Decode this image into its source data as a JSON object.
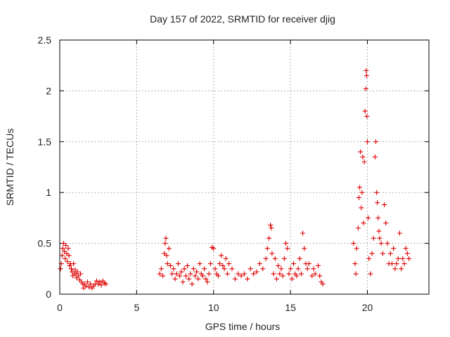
{
  "chart_data": {
    "type": "scatter",
    "title": "Day 157 of 2022, SRMTID for receiver djig",
    "xlabel": "GPS time / hours",
    "ylabel": "SRMTID / TECUs",
    "xlim": [
      0,
      24
    ],
    "ylim": [
      0,
      2.5
    ],
    "xticks": [
      0,
      5,
      10,
      15,
      20
    ],
    "yticks": [
      0,
      0.5,
      1,
      1.5,
      2,
      2.5
    ],
    "xtick_labels": [
      "0",
      "5",
      "10",
      "15",
      "20"
    ],
    "ytick_labels": [
      "0",
      "0.5",
      "1",
      "1.5",
      "2",
      "2.5"
    ],
    "grid": true,
    "marker": "plus",
    "color": "#e00000",
    "series": [
      {
        "name": "SRMTID",
        "points": [
          [
            0.05,
            0.25
          ],
          [
            0.1,
            0.3
          ],
          [
            0.15,
            0.38
          ],
          [
            0.2,
            0.45
          ],
          [
            0.25,
            0.5
          ],
          [
            0.3,
            0.42
          ],
          [
            0.35,
            0.35
          ],
          [
            0.4,
            0.48
          ],
          [
            0.45,
            0.4
          ],
          [
            0.5,
            0.32
          ],
          [
            0.55,
            0.45
          ],
          [
            0.6,
            0.38
          ],
          [
            0.65,
            0.28
          ],
          [
            0.7,
            0.3
          ],
          [
            0.75,
            0.25
          ],
          [
            0.8,
            0.22
          ],
          [
            0.85,
            0.18
          ],
          [
            0.9,
            0.3
          ],
          [
            0.95,
            0.2
          ],
          [
            1.0,
            0.24
          ],
          [
            1.05,
            0.2
          ],
          [
            1.1,
            0.16
          ],
          [
            1.15,
            0.22
          ],
          [
            1.2,
            0.18
          ],
          [
            1.3,
            0.14
          ],
          [
            1.35,
            0.2
          ],
          [
            1.4,
            0.12
          ],
          [
            1.5,
            0.1
          ],
          [
            1.55,
            0.06
          ],
          [
            1.6,
            0.1
          ],
          [
            1.7,
            0.08
          ],
          [
            1.8,
            0.12
          ],
          [
            1.9,
            0.07
          ],
          [
            2.0,
            0.1
          ],
          [
            2.1,
            0.06
          ],
          [
            2.2,
            0.08
          ],
          [
            2.3,
            0.1
          ],
          [
            2.4,
            0.13
          ],
          [
            2.5,
            0.1
          ],
          [
            2.6,
            0.12
          ],
          [
            2.7,
            0.09
          ],
          [
            2.8,
            0.13
          ],
          [
            2.9,
            0.11
          ],
          [
            3.0,
            0.1
          ],
          [
            6.5,
            0.2
          ],
          [
            6.6,
            0.25
          ],
          [
            6.7,
            0.18
          ],
          [
            6.8,
            0.4
          ],
          [
            6.85,
            0.5
          ],
          [
            6.9,
            0.55
          ],
          [
            6.95,
            0.38
          ],
          [
            7.0,
            0.3
          ],
          [
            7.1,
            0.45
          ],
          [
            7.2,
            0.28
          ],
          [
            7.3,
            0.2
          ],
          [
            7.4,
            0.25
          ],
          [
            7.5,
            0.15
          ],
          [
            7.6,
            0.2
          ],
          [
            7.7,
            0.3
          ],
          [
            7.8,
            0.18
          ],
          [
            7.9,
            0.22
          ],
          [
            8.0,
            0.12
          ],
          [
            8.1,
            0.25
          ],
          [
            8.2,
            0.18
          ],
          [
            8.3,
            0.28
          ],
          [
            8.4,
            0.15
          ],
          [
            8.5,
            0.2
          ],
          [
            8.6,
            0.1
          ],
          [
            8.7,
            0.25
          ],
          [
            8.8,
            0.18
          ],
          [
            8.9,
            0.22
          ],
          [
            9.0,
            0.15
          ],
          [
            9.1,
            0.3
          ],
          [
            9.2,
            0.2
          ],
          [
            9.3,
            0.18
          ],
          [
            9.4,
            0.25
          ],
          [
            9.5,
            0.15
          ],
          [
            9.6,
            0.12
          ],
          [
            9.7,
            0.2
          ],
          [
            9.8,
            0.3
          ],
          [
            9.9,
            0.46
          ],
          [
            10.0,
            0.45
          ],
          [
            10.1,
            0.25
          ],
          [
            10.2,
            0.2
          ],
          [
            10.3,
            0.18
          ],
          [
            10.4,
            0.3
          ],
          [
            10.5,
            0.38
          ],
          [
            10.6,
            0.28
          ],
          [
            10.7,
            0.25
          ],
          [
            10.8,
            0.35
          ],
          [
            10.9,
            0.2
          ],
          [
            11.0,
            0.3
          ],
          [
            11.2,
            0.25
          ],
          [
            11.4,
            0.15
          ],
          [
            11.6,
            0.2
          ],
          [
            11.8,
            0.18
          ],
          [
            12.0,
            0.2
          ],
          [
            12.2,
            0.15
          ],
          [
            12.4,
            0.25
          ],
          [
            12.6,
            0.2
          ],
          [
            12.8,
            0.22
          ],
          [
            13.0,
            0.3
          ],
          [
            13.2,
            0.25
          ],
          [
            13.4,
            0.35
          ],
          [
            13.5,
            0.45
          ],
          [
            13.6,
            0.55
          ],
          [
            13.7,
            0.68
          ],
          [
            13.75,
            0.65
          ],
          [
            13.8,
            0.4
          ],
          [
            13.9,
            0.2
          ],
          [
            14.0,
            0.35
          ],
          [
            14.1,
            0.15
          ],
          [
            14.2,
            0.28
          ],
          [
            14.3,
            0.2
          ],
          [
            14.4,
            0.25
          ],
          [
            14.5,
            0.18
          ],
          [
            14.6,
            0.35
          ],
          [
            14.7,
            0.5
          ],
          [
            14.8,
            0.45
          ],
          [
            14.9,
            0.2
          ],
          [
            15.0,
            0.25
          ],
          [
            15.1,
            0.15
          ],
          [
            15.2,
            0.3
          ],
          [
            15.3,
            0.2
          ],
          [
            15.4,
            0.18
          ],
          [
            15.5,
            0.25
          ],
          [
            15.6,
            0.35
          ],
          [
            15.7,
            0.2
          ],
          [
            15.8,
            0.6
          ],
          [
            15.9,
            0.45
          ],
          [
            16.0,
            0.3
          ],
          [
            16.1,
            0.25
          ],
          [
            16.2,
            0.3
          ],
          [
            16.4,
            0.18
          ],
          [
            16.5,
            0.25
          ],
          [
            16.6,
            0.2
          ],
          [
            16.8,
            0.28
          ],
          [
            16.9,
            0.18
          ],
          [
            17.0,
            0.12
          ],
          [
            17.1,
            0.1
          ],
          [
            19.1,
            0.5
          ],
          [
            19.2,
            0.3
          ],
          [
            19.25,
            0.2
          ],
          [
            19.3,
            0.45
          ],
          [
            19.4,
            0.65
          ],
          [
            19.45,
            0.95
          ],
          [
            19.5,
            1.05
          ],
          [
            19.55,
            1.4
          ],
          [
            19.6,
            0.85
          ],
          [
            19.65,
            1.0
          ],
          [
            19.7,
            1.35
          ],
          [
            19.75,
            0.7
          ],
          [
            19.8,
            1.3
          ],
          [
            19.85,
            1.8
          ],
          [
            19.9,
            2.02
          ],
          [
            19.92,
            2.2
          ],
          [
            19.95,
            2.15
          ],
          [
            19.97,
            1.75
          ],
          [
            20.0,
            1.5
          ],
          [
            20.05,
            0.75
          ],
          [
            20.1,
            0.35
          ],
          [
            20.2,
            0.2
          ],
          [
            20.3,
            0.4
          ],
          [
            20.4,
            0.55
          ],
          [
            20.5,
            1.35
          ],
          [
            20.55,
            1.5
          ],
          [
            20.6,
            1.0
          ],
          [
            20.65,
            0.9
          ],
          [
            20.7,
            0.75
          ],
          [
            20.75,
            0.62
          ],
          [
            20.8,
            0.55
          ],
          [
            20.9,
            0.5
          ],
          [
            21.0,
            0.4
          ],
          [
            21.1,
            0.88
          ],
          [
            21.2,
            0.7
          ],
          [
            21.3,
            0.5
          ],
          [
            21.4,
            0.3
          ],
          [
            21.5,
            0.4
          ],
          [
            21.6,
            0.3
          ],
          [
            21.7,
            0.45
          ],
          [
            21.8,
            0.25
          ],
          [
            21.9,
            0.3
          ],
          [
            22.0,
            0.35
          ],
          [
            22.1,
            0.6
          ],
          [
            22.2,
            0.25
          ],
          [
            22.3,
            0.35
          ],
          [
            22.4,
            0.3
          ],
          [
            22.5,
            0.45
          ],
          [
            22.6,
            0.4
          ],
          [
            22.7,
            0.35
          ]
        ]
      }
    ]
  }
}
